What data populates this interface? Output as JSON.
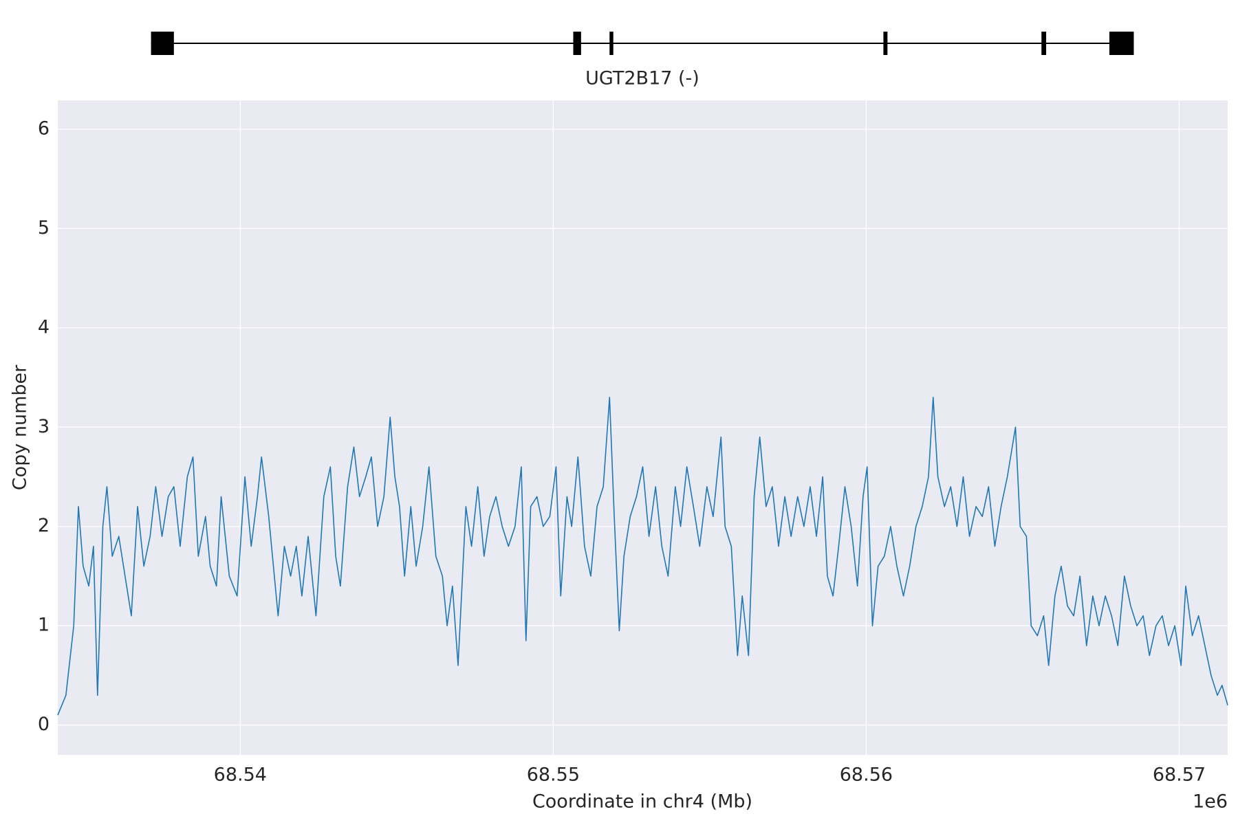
{
  "chart_data": {
    "type": "line",
    "xlabel": "Coordinate in chr4 (Mb)",
    "ylabel": "Copy number",
    "x_offset_label": "1e6",
    "gene": {
      "label": "UGT2B17 (-)",
      "start": 68.53715,
      "end": 68.56855,
      "exons": [
        [
          68.53715,
          68.53788
        ],
        [
          68.55064,
          68.55089
        ],
        [
          68.5518,
          68.55192
        ],
        [
          68.56055,
          68.56068
        ],
        [
          68.5656,
          68.56575
        ],
        [
          68.56777,
          68.56855
        ]
      ]
    },
    "color": "#1f77b4",
    "grid": true,
    "xlim": [
      68.53417,
      68.57155
    ],
    "xticks": [
      68.54,
      68.55,
      68.56,
      68.57
    ],
    "ylim": [
      -0.3,
      6.29
    ],
    "yticks": [
      0,
      1,
      2,
      3,
      4,
      5,
      6
    ],
    "x": [
      68.53417,
      68.53443,
      68.53468,
      68.53483,
      68.53498,
      68.53516,
      68.53531,
      68.53544,
      68.53561,
      68.53574,
      68.53591,
      68.53612,
      68.53632,
      68.53652,
      68.53672,
      68.53692,
      68.53712,
      68.5373,
      68.5375,
      68.5377,
      68.53788,
      68.53808,
      68.53831,
      68.53849,
      68.53866,
      68.53889,
      68.53904,
      68.53924,
      68.53939,
      68.53965,
      68.5399,
      68.54015,
      68.54035,
      68.54055,
      68.54068,
      68.54091,
      68.54106,
      68.54121,
      68.54141,
      68.54161,
      68.54179,
      68.54197,
      68.54217,
      68.54242,
      68.54267,
      68.54288,
      68.54305,
      68.5432,
      68.54343,
      68.54363,
      68.54381,
      68.54401,
      68.54419,
      68.54439,
      68.54459,
      68.54479,
      68.54494,
      68.54509,
      68.54525,
      68.54545,
      68.54562,
      68.54583,
      68.54603,
      68.54625,
      68.54646,
      68.54661,
      68.54678,
      68.54696,
      68.54721,
      68.54739,
      68.54759,
      68.54779,
      68.54797,
      68.54817,
      68.54837,
      68.54857,
      68.54878,
      68.54898,
      68.54913,
      68.54928,
      68.54948,
      68.54968,
      68.54989,
      68.55009,
      68.55024,
      68.55044,
      68.55059,
      68.55079,
      68.551,
      68.5512,
      68.5514,
      68.5516,
      68.5518,
      68.55195,
      68.55211,
      68.55226,
      68.55246,
      68.55266,
      68.55286,
      68.55306,
      68.55327,
      68.55347,
      68.55367,
      68.5539,
      68.55407,
      68.55427,
      68.55448,
      68.55468,
      68.55491,
      68.55511,
      68.55536,
      68.55549,
      68.55569,
      68.55589,
      68.55604,
      68.55624,
      68.55642,
      68.5566,
      68.5568,
      68.557,
      68.5572,
      68.5574,
      68.5576,
      68.55781,
      68.55801,
      68.55821,
      68.55841,
      68.55861,
      68.55876,
      68.55894,
      68.55912,
      68.55932,
      68.55952,
      68.55972,
      68.5599,
      68.56003,
      68.5602,
      68.56038,
      68.56058,
      68.56078,
      68.56098,
      68.56119,
      68.56139,
      68.56159,
      68.56179,
      68.56199,
      68.56214,
      68.56229,
      68.5625,
      68.5627,
      68.5629,
      68.5631,
      68.5633,
      68.56351,
      68.56371,
      68.56391,
      68.56411,
      68.56431,
      68.56451,
      68.56477,
      68.56492,
      68.56512,
      68.56527,
      68.56547,
      68.56567,
      68.56583,
      68.56603,
      68.56623,
      68.56643,
      68.56663,
      68.56683,
      68.56704,
      68.56724,
      68.56744,
      68.56764,
      68.56784,
      68.56804,
      68.56825,
      68.56845,
      68.56865,
      68.56885,
      68.56905,
      68.56926,
      68.56946,
      68.56966,
      68.56986,
      68.57006,
      68.57021,
      68.57042,
      68.57062,
      68.57082,
      68.57102,
      68.57122,
      68.57137,
      68.57155
    ],
    "values": [
      0.1,
      0.3,
      1.0,
      2.2,
      1.6,
      1.4,
      1.8,
      0.3,
      2.0,
      2.4,
      1.7,
      1.9,
      1.5,
      1.1,
      2.2,
      1.6,
      1.9,
      2.4,
      1.9,
      2.3,
      2.4,
      1.8,
      2.5,
      2.7,
      1.7,
      2.1,
      1.6,
      1.4,
      2.3,
      1.5,
      1.3,
      2.5,
      1.8,
      2.3,
      2.7,
      2.1,
      1.6,
      1.1,
      1.8,
      1.5,
      1.8,
      1.3,
      1.9,
      1.1,
      2.3,
      2.6,
      1.7,
      1.4,
      2.4,
      2.8,
      2.3,
      2.5,
      2.7,
      2.0,
      2.3,
      3.1,
      2.5,
      2.2,
      1.5,
      2.2,
      1.6,
      2.0,
      2.6,
      1.7,
      1.5,
      1.0,
      1.4,
      0.6,
      2.2,
      1.8,
      2.4,
      1.7,
      2.1,
      2.3,
      2.0,
      1.8,
      2.0,
      2.6,
      0.85,
      2.2,
      2.3,
      2.0,
      2.1,
      2.6,
      1.3,
      2.3,
      2.0,
      2.7,
      1.8,
      1.5,
      2.2,
      2.4,
      3.3,
      2.1,
      0.95,
      1.7,
      2.1,
      2.3,
      2.6,
      1.9,
      2.4,
      1.8,
      1.5,
      2.4,
      2.0,
      2.6,
      2.2,
      1.8,
      2.4,
      2.1,
      2.9,
      2.0,
      1.8,
      0.7,
      1.3,
      0.7,
      2.3,
      2.9,
      2.2,
      2.4,
      1.8,
      2.3,
      1.9,
      2.3,
      2.0,
      2.4,
      1.9,
      2.5,
      1.5,
      1.3,
      1.8,
      2.4,
      2.0,
      1.4,
      2.3,
      2.6,
      1.0,
      1.6,
      1.7,
      2.0,
      1.6,
      1.3,
      1.6,
      2.0,
      2.2,
      2.5,
      3.3,
      2.5,
      2.2,
      2.4,
      2.0,
      2.5,
      1.9,
      2.2,
      2.1,
      2.4,
      1.8,
      2.2,
      2.5,
      3.0,
      2.0,
      1.9,
      1.0,
      0.9,
      1.1,
      0.6,
      1.3,
      1.6,
      1.2,
      1.1,
      1.5,
      0.8,
      1.3,
      1.0,
      1.3,
      1.1,
      0.8,
      1.5,
      1.2,
      1.0,
      1.1,
      0.7,
      1.0,
      1.1,
      0.8,
      1.0,
      0.6,
      1.4,
      0.9,
      1.1,
      0.8,
      0.5,
      0.3,
      0.4,
      0.2
    ]
  }
}
